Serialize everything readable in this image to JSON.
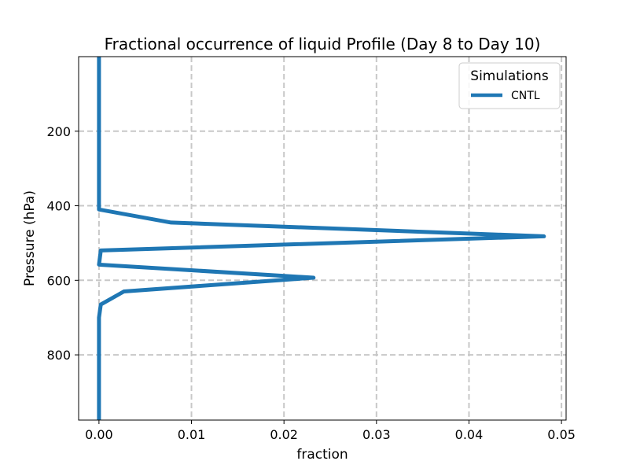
{
  "chart_data": {
    "type": "line",
    "title": "Fractional occurrence of liquid Profile (Day 8 to Day 10)",
    "xlabel": "fraction",
    "ylabel": "Pressure (hPa)",
    "xlim": [
      -0.0022,
      0.0505
    ],
    "ylim": [
      975,
      0
    ],
    "y_inverted": true,
    "xticks": [
      0.0,
      0.01,
      0.02,
      0.03,
      0.04,
      0.05
    ],
    "xtick_labels": [
      "0.00",
      "0.01",
      "0.02",
      "0.03",
      "0.04",
      "0.05"
    ],
    "yticks": [
      200,
      400,
      600,
      800
    ],
    "ytick_labels": [
      "200",
      "400",
      "600",
      "800"
    ],
    "grid": true,
    "legend": {
      "title": "Simulations",
      "placement": "top-right"
    },
    "series": [
      {
        "name": "CNTL",
        "color": "#1f77b4",
        "x": [
          0.0,
          0.0,
          0.0,
          0.0078,
          0.0481,
          0.0002,
          0.0,
          0.0232,
          0.0027,
          0.0002,
          0.0,
          0.0,
          0.0
        ],
        "y": [
          0,
          200,
          410,
          445,
          482,
          520,
          558,
          593,
          630,
          665,
          700,
          800,
          975
        ]
      }
    ]
  }
}
